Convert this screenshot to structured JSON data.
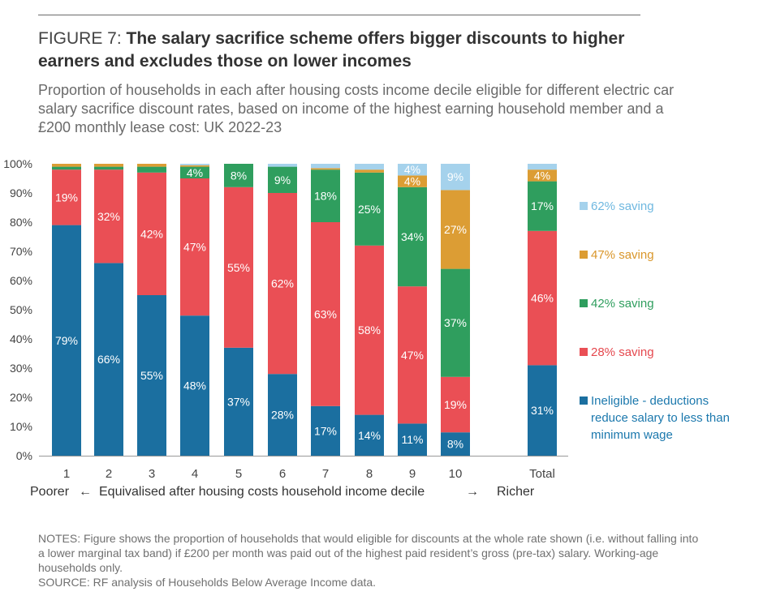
{
  "header": {
    "figure_label": "FIGURE 7: ",
    "title": "The salary sacrifice scheme offers bigger discounts to higher earners and excludes those on lower incomes",
    "subtitle": "Proportion of households in each after housing costs income decile eligible for different electric car salary sacrifice discount rates, based on income of the highest earning household member and a £200 monthly lease cost: UK 2022-23"
  },
  "chart_data": {
    "type": "bar",
    "stacked": true,
    "categories": [
      "1",
      "2",
      "3",
      "4",
      "5",
      "6",
      "7",
      "8",
      "9",
      "10",
      "Total"
    ],
    "ylim": [
      0,
      100
    ],
    "yticks": [
      "0%",
      "10%",
      "20%",
      "30%",
      "40%",
      "50%",
      "60%",
      "70%",
      "80%",
      "90%",
      "100%"
    ],
    "xlabel": "Equivalised after housing costs household income decile",
    "xlabel_left": "Poorer",
    "xlabel_right": "Richer",
    "arrow_left": "←",
    "arrow_right": "→",
    "series": [
      {
        "name": "Ineligible - deductions reduce salary to less than minimum wage",
        "color": "#1b6fa0",
        "values": [
          79,
          66,
          55,
          48,
          37,
          28,
          17,
          14,
          11,
          8,
          31
        ],
        "labels": [
          "79%",
          "66%",
          "55%",
          "48%",
          "37%",
          "28%",
          "17%",
          "14%",
          "11%",
          "8%",
          "31%"
        ]
      },
      {
        "name": "28% saving",
        "color": "#ea4f55",
        "values": [
          19,
          32,
          42,
          47,
          55,
          62,
          63,
          58,
          47,
          19,
          46
        ],
        "labels": [
          "19%",
          "32%",
          "42%",
          "47%",
          "55%",
          "62%",
          "63%",
          "58%",
          "47%",
          "19%",
          "46%"
        ]
      },
      {
        "name": "42% saving",
        "color": "#2f9e5e",
        "values": [
          1,
          1,
          2,
          4,
          8,
          9,
          18,
          25,
          34,
          37,
          17
        ],
        "labels": [
          "",
          "",
          "",
          "4%",
          "8%",
          "9%",
          "18%",
          "25%",
          "34%",
          "37%",
          "17%"
        ]
      },
      {
        "name": "47% saving",
        "color": "#dc9d34",
        "values": [
          1,
          1,
          1,
          0.5,
          0,
          0,
          0.5,
          1,
          4,
          27,
          4
        ],
        "labels": [
          "",
          "",
          "",
          "",
          "",
          "",
          "",
          "",
          "4%",
          "27%",
          "4%"
        ]
      },
      {
        "name": "62% saving",
        "color": "#a5d2ec",
        "values": [
          0,
          0,
          0,
          0.5,
          0,
          1,
          1.5,
          2,
          4,
          9,
          2
        ],
        "labels": [
          "",
          "",
          "",
          "",
          "",
          "",
          "",
          "",
          "4%",
          "9%",
          ""
        ]
      }
    ]
  },
  "legend": [
    {
      "label": "62% saving",
      "color": "#a5d2ec",
      "text_color": "#6fb8e0"
    },
    {
      "label": "47% saving",
      "color": "#dc9d34",
      "text_color": "#d9962a"
    },
    {
      "label": "42% saving",
      "color": "#2f9e5e",
      "text_color": "#2f9e5e"
    },
    {
      "label": "28% saving",
      "color": "#ea4f55",
      "text_color": "#e5484e"
    },
    {
      "label": "Ineligible - deductions reduce salary to less than minimum wage",
      "color": "#1b6fa0",
      "text_color": "#1b78ad"
    }
  ],
  "notes": {
    "notes_text": "NOTES: Figure shows the proportion of households that would eligible for discounts at the whole rate shown (i.e. without falling into a lower marginal tax band) if £200 per month was paid out of the highest paid resident’s gross (pre-tax) salary. Working-age households only.",
    "source_text": "SOURCE: RF analysis of Households Below Average Income data."
  }
}
